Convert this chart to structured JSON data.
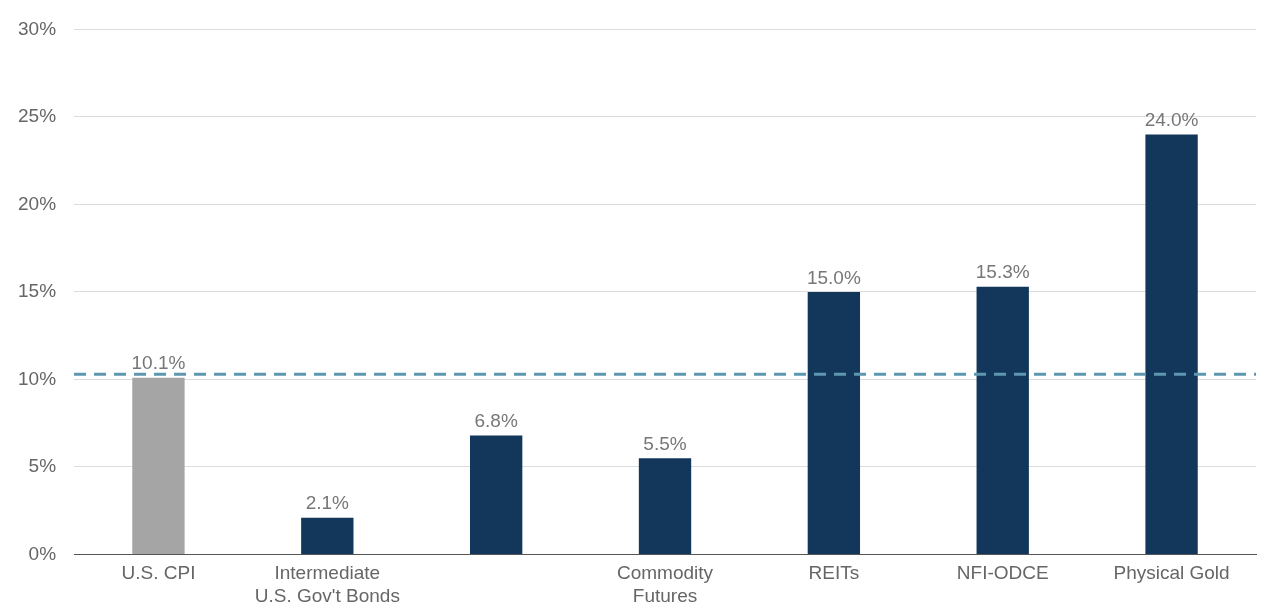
{
  "chart_data": {
    "type": "bar",
    "categories": [
      "U.S. CPI",
      "Intermediate U.S. Gov't Bonds",
      null,
      "Commodity Futures",
      "REITs",
      "NFI-ODCE",
      "Physical Gold"
    ],
    "values": [
      10.1,
      2.1,
      6.8,
      5.5,
      15.0,
      15.3,
      24.0
    ],
    "colors": [
      "#a5a5a5",
      "#12375a",
      "#12375a",
      "#12375a",
      "#12375a",
      "#12375a",
      "#12375a"
    ],
    "value_labels": [
      "10.1%",
      "2.1%",
      "6.8%",
      "5.5%",
      "15.0%",
      "15.3%",
      "24.0%"
    ],
    "ylim": [
      0,
      30
    ],
    "yticks": [
      {
        "value": 0,
        "label": "0%"
      },
      {
        "value": 5,
        "label": "5%"
      },
      {
        "value": 10,
        "label": "10%"
      },
      {
        "value": 15,
        "label": "15%"
      },
      {
        "value": 20,
        "label": "20%"
      },
      {
        "value": 25,
        "label": "25%"
      },
      {
        "value": 30,
        "label": "30%"
      }
    ],
    "grid": "y",
    "legend": false,
    "ref_lines": [
      {
        "axis": "y",
        "value": 10.3,
        "color": "#5d97b0",
        "line_style": "dashed"
      }
    ]
  }
}
